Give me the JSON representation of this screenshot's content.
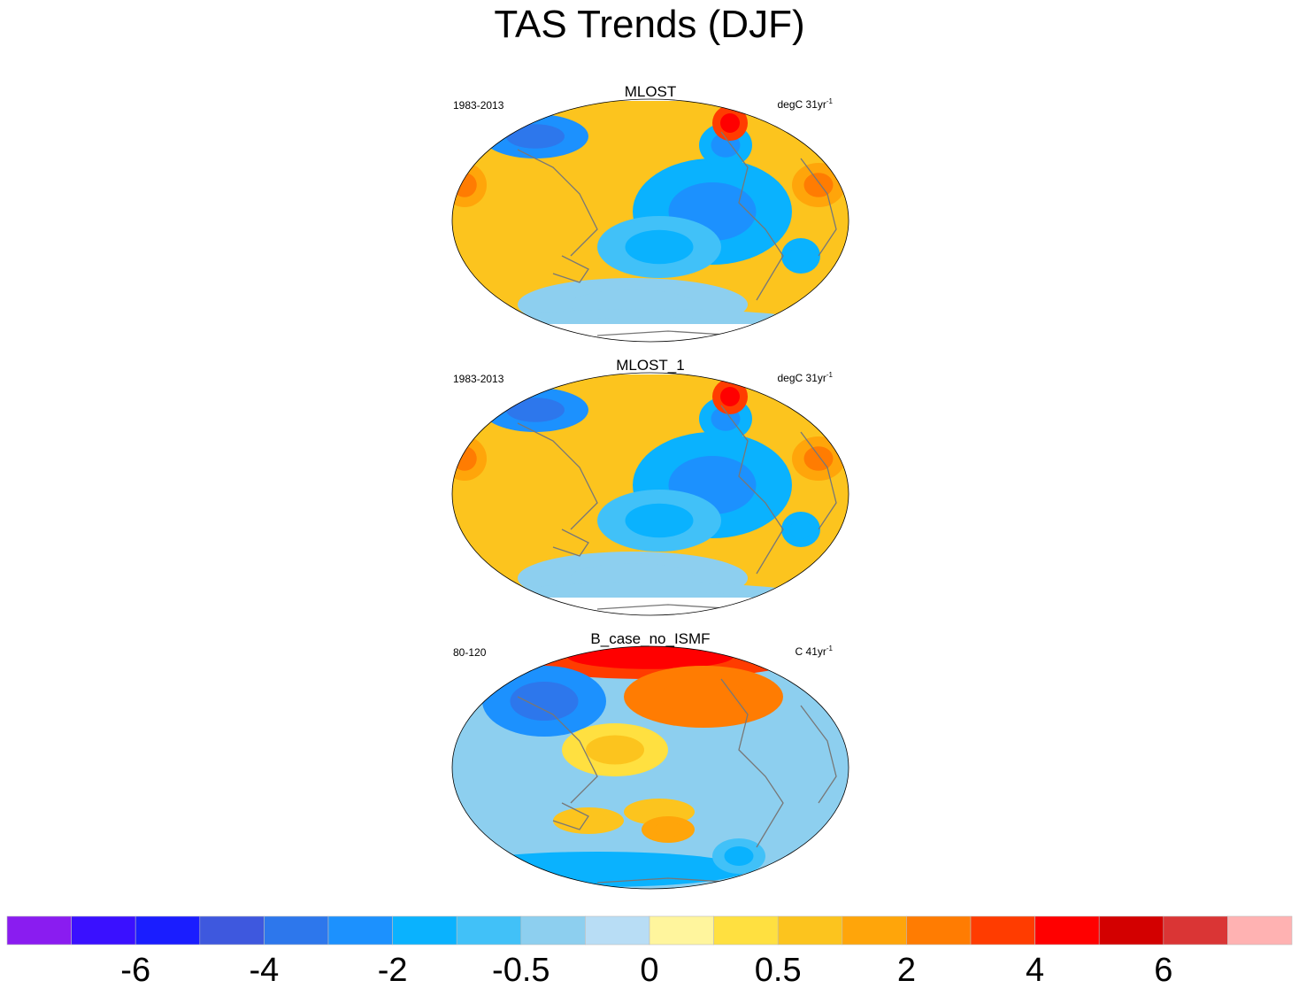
{
  "title": "TAS Trends (DJF)",
  "chart_data": [
    {
      "type": "heatmap",
      "title": "MLOST",
      "left_label": "1983-2013",
      "units_label": "degC 31yr",
      "units_exp": "-1",
      "regions": [
        {
          "lon": -95,
          "lat": 52,
          "value": 3.0
        },
        {
          "lon": -120,
          "lat": 10,
          "value": -1.2
        },
        {
          "lon": -140,
          "lat": -5,
          "value": -1.5
        },
        {
          "lon": 110,
          "lat": 65,
          "value": -2.0
        },
        {
          "lon": 30,
          "lat": 10,
          "value": 1.0
        },
        {
          "lon": -20,
          "lat": -15,
          "value": -1.0
        },
        {
          "lon": 40,
          "lat": 45,
          "value": 1.5
        },
        {
          "lon": 140,
          "lat": 5,
          "value": 0.8
        }
      ]
    },
    {
      "type": "heatmap",
      "title": "MLOST_1",
      "left_label": "1983-2013",
      "units_label": "degC 31yr",
      "units_exp": "-1",
      "regions": [
        {
          "lon": -95,
          "lat": 52,
          "value": 3.0
        },
        {
          "lon": -120,
          "lat": 10,
          "value": -1.2
        },
        {
          "lon": -140,
          "lat": -5,
          "value": -1.5
        },
        {
          "lon": 110,
          "lat": 65,
          "value": -2.0
        },
        {
          "lon": 30,
          "lat": 10,
          "value": 1.0
        },
        {
          "lon": -20,
          "lat": -15,
          "value": -1.0
        },
        {
          "lon": 40,
          "lat": 45,
          "value": 1.5
        },
        {
          "lon": 140,
          "lat": 5,
          "value": 0.8
        }
      ]
    },
    {
      "type": "heatmap",
      "title": "B_case_no_ISMF",
      "left_label": "80-120",
      "units_label": "C 41yr",
      "units_exp": "-1",
      "regions": [
        {
          "lon": 180,
          "lat": 78,
          "value": 3.5
        },
        {
          "lon": -110,
          "lat": 55,
          "value": 2.0
        },
        {
          "lon": 100,
          "lat": 55,
          "value": -2.0
        },
        {
          "lon": 0,
          "lat": 0,
          "value": -0.5
        },
        {
          "lon": 80,
          "lat": -75,
          "value": -1.5
        },
        {
          "lon": -160,
          "lat": -40,
          "value": 0.5
        }
      ]
    }
  ],
  "colorbar": {
    "colors": [
      "#8a1cf0",
      "#3a10ff",
      "#1a1dff",
      "#3e58de",
      "#2d77ec",
      "#1c91fe",
      "#0ab2fe",
      "#41c1f8",
      "#8dcfef",
      "#b8ddf5",
      "#fff59d",
      "#ffe040",
      "#fcc41e",
      "#ffa50a",
      "#ff7c02",
      "#ff3c00",
      "#ff0000",
      "#d30000",
      "#da3535",
      "#ffb2b2"
    ],
    "labels": [
      "-6",
      "-4",
      "-2",
      "-0.5",
      "0",
      "0.5",
      "2",
      "4",
      "6"
    ]
  }
}
